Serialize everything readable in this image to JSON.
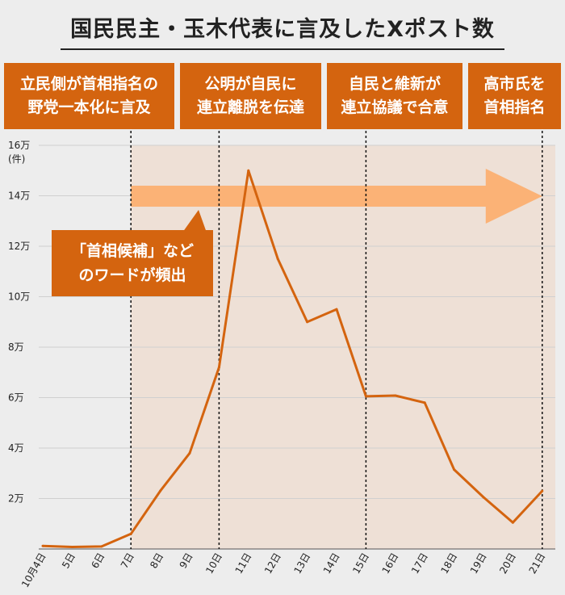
{
  "title": "国民民主・玉木代表に言及したXポスト数",
  "events": [
    {
      "label": "立民側が首相指名の\n野党一本化に言及",
      "date": "7日"
    },
    {
      "label": "公明が自民に\n連立離脱を伝達",
      "date": "10日"
    },
    {
      "label": "自民と維新が\n連立協議で合意",
      "date": "15日"
    },
    {
      "label": "高市氏を\n首相指名",
      "date": "21日"
    }
  ],
  "callout": "「首相候補」など\nのワードが頻出",
  "colors": {
    "line": "#d4640f",
    "box": "#d4640f",
    "shade": "#eee0d6",
    "arrow": "#fbb276",
    "background": "#ededed"
  },
  "chart_data": {
    "type": "line",
    "title": "国民民主・玉木代表に言及したXポスト数",
    "ylabel": "(件)",
    "ytick_labels": [
      "2万",
      "4万",
      "6万",
      "8万",
      "10万",
      "12万",
      "14万",
      "16万"
    ],
    "ylim": [
      0,
      160000
    ],
    "categories": [
      "10月4日",
      "5日",
      "6日",
      "7日",
      "8日",
      "9日",
      "10日",
      "11日",
      "12日",
      "13日",
      "14日",
      "15日",
      "16日",
      "17日",
      "18日",
      "19日",
      "20日",
      "21日"
    ],
    "values": [
      1200,
      800,
      1000,
      6000,
      23000,
      38000,
      72000,
      150000,
      115000,
      90000,
      95000,
      60500,
      60800,
      58000,
      31500,
      20500,
      10500,
      23000
    ],
    "shaded_range": [
      "7日",
      "21日"
    ],
    "arrow_range": [
      "7日",
      "21日"
    ],
    "markers": [
      "7日",
      "10日",
      "15日",
      "21日"
    ]
  }
}
